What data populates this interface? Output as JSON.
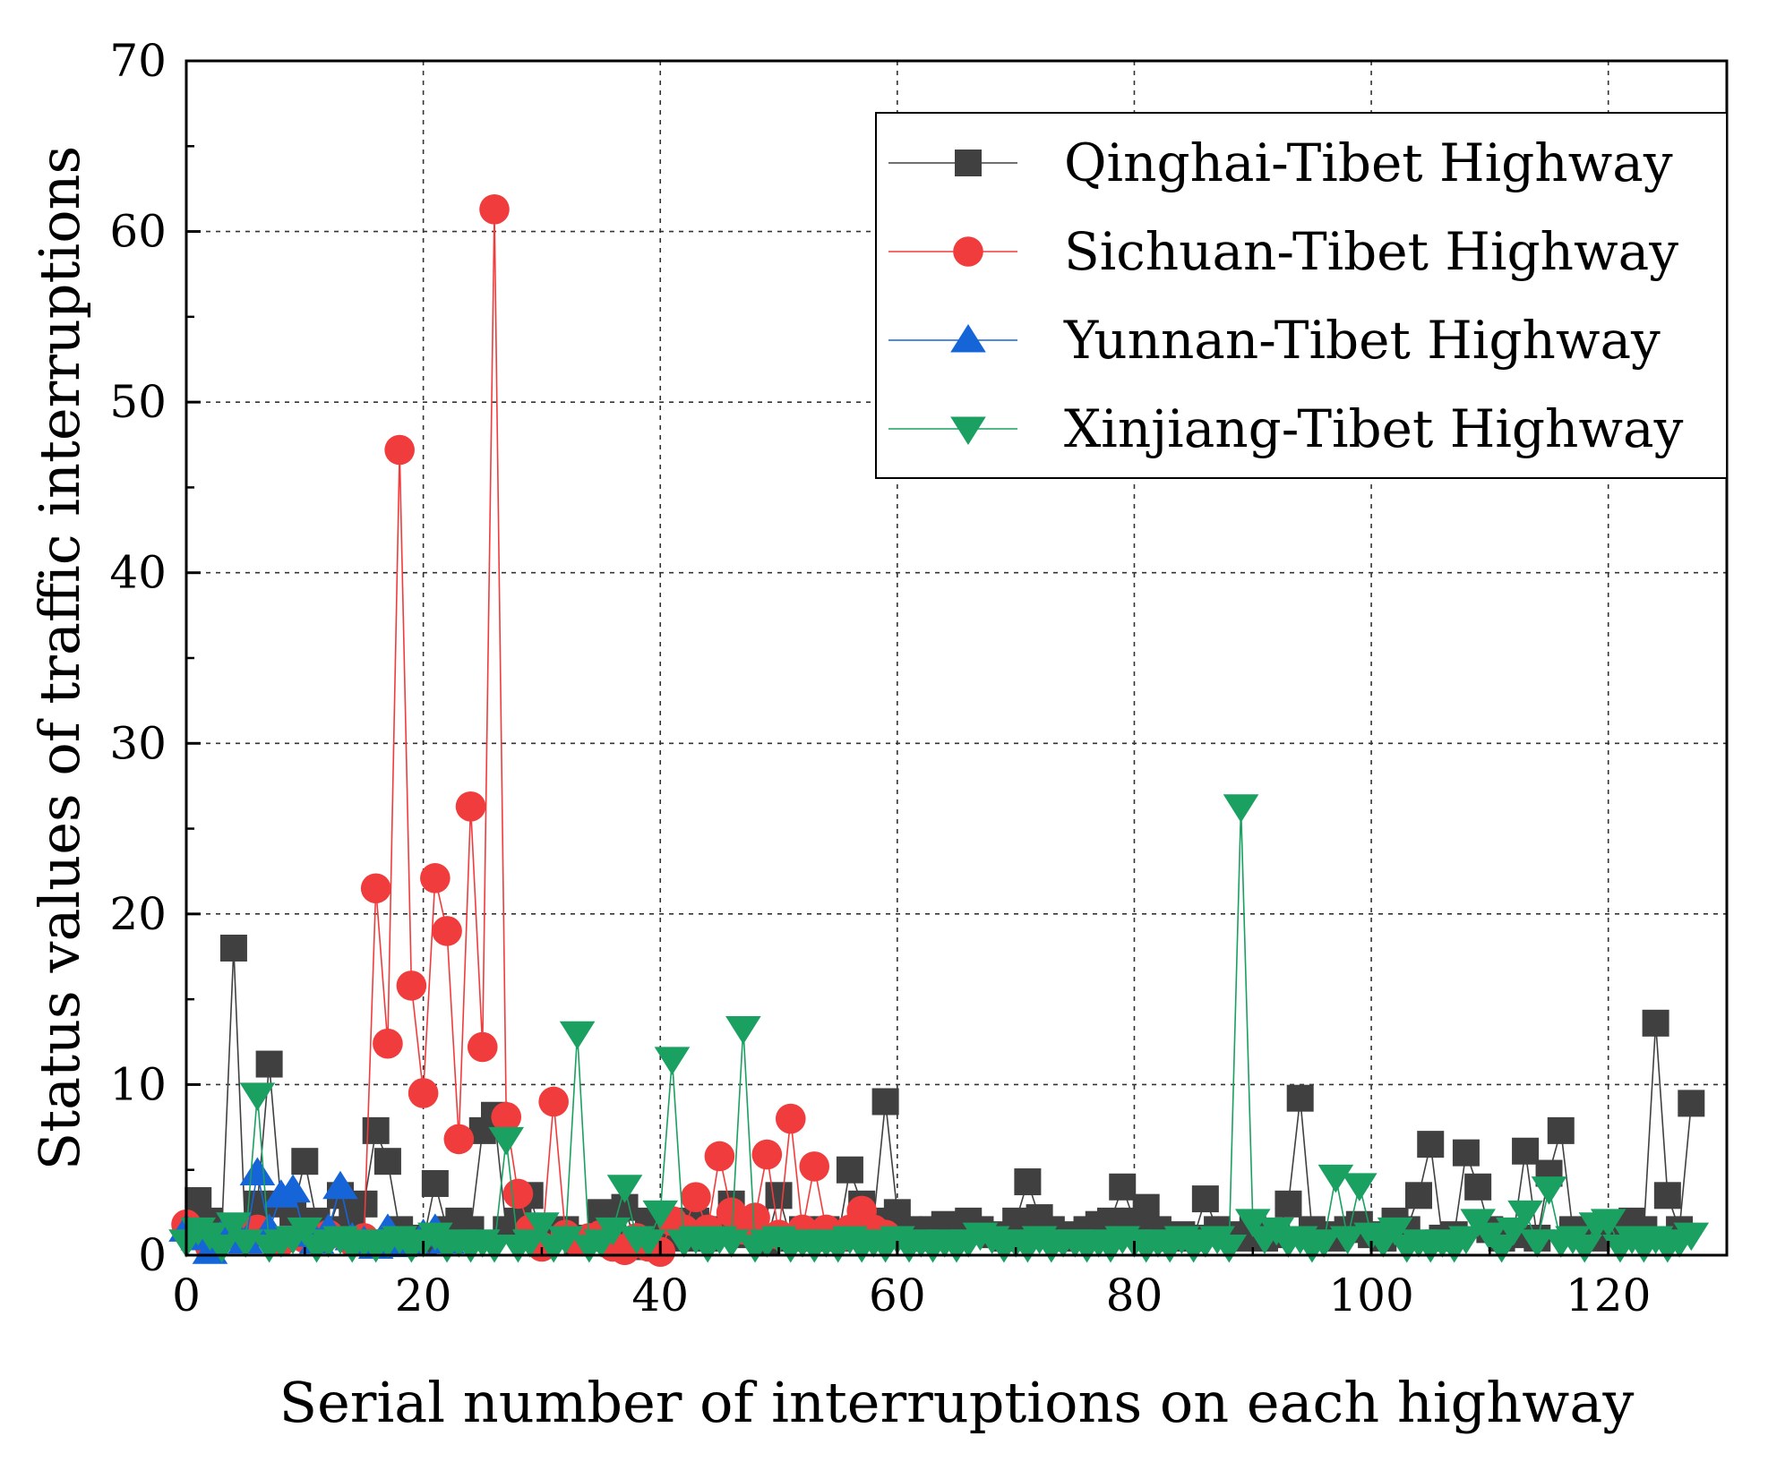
{
  "chart_data": {
    "type": "line",
    "title": "",
    "xlabel": "Serial number of interruptions on each highway",
    "ylabel": "Status values of traffic interruptions",
    "xlim": [
      0,
      130
    ],
    "ylim": [
      0,
      70
    ],
    "xticks": [
      0,
      20,
      40,
      60,
      80,
      100,
      120
    ],
    "yticks": [
      0,
      10,
      20,
      30,
      40,
      50,
      60,
      70
    ],
    "grid": true,
    "legend_position": "top-right",
    "series": [
      {
        "name": "Qinghai-Tibet Highway",
        "color": "#404040",
        "marker": "square",
        "x": [
          1,
          2,
          3,
          4,
          5,
          6,
          7,
          8,
          9,
          10,
          11,
          12,
          13,
          14,
          15,
          16,
          17,
          18,
          19,
          20,
          21,
          22,
          23,
          24,
          25,
          26,
          27,
          28,
          29,
          30,
          31,
          32,
          33,
          34,
          35,
          36,
          37,
          38,
          39,
          40,
          41,
          42,
          43,
          44,
          45,
          46,
          47,
          48,
          49,
          50,
          51,
          52,
          53,
          54,
          55,
          56,
          57,
          58,
          59,
          60,
          61,
          62,
          63,
          64,
          65,
          66,
          67,
          68,
          69,
          70,
          71,
          72,
          73,
          74,
          75,
          76,
          77,
          78,
          79,
          80,
          81,
          82,
          83,
          84,
          85,
          86,
          87,
          88,
          89,
          90,
          91,
          92,
          93,
          94,
          95,
          96,
          97,
          98,
          99,
          100,
          101,
          102,
          103,
          104,
          105,
          106,
          107,
          108,
          109,
          110,
          111,
          112,
          113,
          114,
          115,
          116,
          117,
          118,
          119,
          120,
          121,
          122,
          123,
          124,
          125,
          126,
          127
        ],
        "values": [
          3.2,
          2,
          1.5,
          18,
          1,
          3,
          11.2,
          3,
          2.5,
          5.5,
          2,
          1.5,
          3.5,
          2,
          3,
          7.3,
          5.5,
          1.5,
          1,
          0.8,
          4.2,
          1.5,
          2,
          1.5,
          7.3,
          8.2,
          1.5,
          2,
          3.5,
          1,
          1.2,
          1.5,
          0.8,
          1,
          2.5,
          2,
          2.8,
          0.5,
          2,
          1.5,
          2,
          1,
          2,
          1,
          1.5,
          3,
          1.2,
          2,
          0.8,
          3.5,
          1,
          1.5,
          1,
          1.5,
          1,
          5,
          3,
          2,
          9,
          2.5,
          1.5,
          1,
          1.5,
          1.8,
          1.2,
          2,
          1.5,
          1.2,
          1,
          2,
          4.3,
          2.2,
          1.5,
          1,
          1.2,
          1.5,
          1.8,
          2,
          4,
          2,
          2.8,
          1.5,
          1,
          1.2,
          1,
          3.3,
          1.5,
          1.2,
          1,
          1.5,
          1,
          1.2,
          3,
          9.2,
          1.5,
          1.2,
          1,
          1.5,
          1.8,
          1.2,
          1,
          2,
          1.5,
          3.5,
          6.5,
          1,
          1.2,
          6,
          4,
          1.5,
          1,
          1.2,
          6.1,
          1,
          4.8,
          7.3,
          1.5,
          1.2,
          1,
          1.5,
          1.8,
          2,
          1.5,
          13.6,
          3.5,
          1.5,
          8.9
        ]
      },
      {
        "name": "Sichuan-Tibet Highway",
        "color": "#f03c3c",
        "marker": "circle",
        "x": [
          0,
          2,
          4,
          6,
          8,
          10,
          12,
          14,
          15,
          16,
          17,
          18,
          19,
          20,
          21,
          22,
          23,
          24,
          25,
          26,
          27,
          28,
          29,
          30,
          31,
          32,
          33,
          34,
          35,
          36,
          37,
          38,
          39,
          40,
          41,
          42,
          43,
          44,
          45,
          46,
          47,
          48,
          49,
          50,
          51,
          52,
          53,
          54,
          55,
          56,
          57,
          58,
          59
        ],
        "values": [
          1.8,
          0.5,
          1.2,
          1.5,
          0.8,
          1,
          1.2,
          0.8,
          1,
          21.5,
          12.4,
          47.2,
          15.8,
          9.5,
          22.1,
          19,
          6.8,
          26.3,
          12.2,
          61.3,
          8.1,
          3.6,
          1.5,
          0.5,
          9,
          1.2,
          0.8,
          1,
          1.2,
          0.5,
          0.3,
          1,
          0.5,
          0.2,
          2,
          1.5,
          3.4,
          1.5,
          5.8,
          2.5,
          1.5,
          2.2,
          5.9,
          1.2,
          8,
          1.5,
          5.2,
          1.5,
          1,
          1.5,
          2.6,
          1.5,
          1.2
        ]
      },
      {
        "name": "Yunnan-Tibet Highway",
        "color": "#1565d8",
        "marker": "triangle-up",
        "x": [
          0,
          1,
          2,
          3,
          4,
          5,
          6,
          7,
          8,
          9,
          10,
          11,
          12,
          13,
          14,
          15,
          16,
          17,
          18,
          19,
          20,
          21,
          22
        ],
        "values": [
          1.5,
          1,
          0.2,
          1.2,
          1.5,
          0.8,
          4.8,
          1.5,
          3.5,
          3.8,
          1.2,
          0.8,
          1.5,
          4,
          1,
          0.8,
          0.5,
          1.5,
          0.6,
          0.8,
          1.2,
          1.5,
          0.8
        ]
      },
      {
        "name": "Xinjiang-Tibet Highway",
        "color": "#1aa060",
        "marker": "triangle-down",
        "x": [
          0,
          1,
          2,
          3,
          4,
          5,
          6,
          7,
          8,
          9,
          10,
          11,
          12,
          13,
          14,
          15,
          16,
          17,
          18,
          19,
          20,
          21,
          22,
          23,
          24,
          25,
          26,
          27,
          28,
          29,
          30,
          31,
          32,
          33,
          34,
          35,
          36,
          37,
          38,
          39,
          40,
          41,
          42,
          43,
          44,
          45,
          46,
          47,
          48,
          49,
          50,
          51,
          52,
          53,
          54,
          55,
          56,
          57,
          58,
          59,
          60,
          61,
          62,
          63,
          64,
          65,
          66,
          67,
          68,
          69,
          70,
          71,
          72,
          73,
          74,
          75,
          76,
          77,
          78,
          79,
          80,
          81,
          82,
          83,
          84,
          85,
          86,
          87,
          88,
          89,
          90,
          91,
          92,
          93,
          94,
          95,
          96,
          97,
          98,
          99,
          100,
          101,
          102,
          103,
          104,
          105,
          106,
          107,
          108,
          109,
          110,
          111,
          112,
          113,
          114,
          115,
          116,
          117,
          118,
          119,
          120,
          121,
          122,
          123,
          124,
          125,
          126,
          127
        ],
        "values": [
          0.8,
          1.5,
          1.2,
          0.5,
          1.8,
          0.8,
          9.4,
          0.5,
          0.8,
          1,
          1.5,
          0.5,
          0.8,
          1,
          0.5,
          0.8,
          0.5,
          0.8,
          1,
          0.5,
          0.8,
          1.2,
          0.5,
          0.8,
          0.5,
          0.8,
          0.5,
          6.8,
          0.5,
          0.8,
          1.8,
          0.5,
          1,
          13,
          0.5,
          0.8,
          1.5,
          4,
          1,
          0.8,
          2.5,
          11.5,
          0.8,
          1,
          0.5,
          1,
          0.8,
          13.3,
          0.5,
          0.8,
          1,
          0.5,
          0.8,
          0.5,
          0.8,
          0.5,
          1,
          0.5,
          0.8,
          0.5,
          1,
          0.5,
          0.8,
          0.5,
          0.8,
          0.5,
          0.8,
          1.2,
          1,
          0.5,
          0.8,
          0.5,
          1,
          0.5,
          0.8,
          0.8,
          0.5,
          0.8,
          0.5,
          1,
          0.8,
          0.5,
          0.8,
          0.5,
          1,
          0.5,
          0.8,
          1,
          0.5,
          26.3,
          2,
          1,
          1.5,
          0.8,
          1,
          0.5,
          0.8,
          4.6,
          1,
          4.1,
          1.2,
          0.8,
          1.5,
          0.5,
          0.8,
          0.5,
          0.8,
          0.5,
          1,
          2,
          1.2,
          0.5,
          1.5,
          2.5,
          0.8,
          3.9,
          0.8,
          1,
          0.5,
          1.8,
          2,
          0.5,
          1,
          0.5,
          1,
          0.5,
          0.8,
          1.2
        ]
      }
    ]
  }
}
